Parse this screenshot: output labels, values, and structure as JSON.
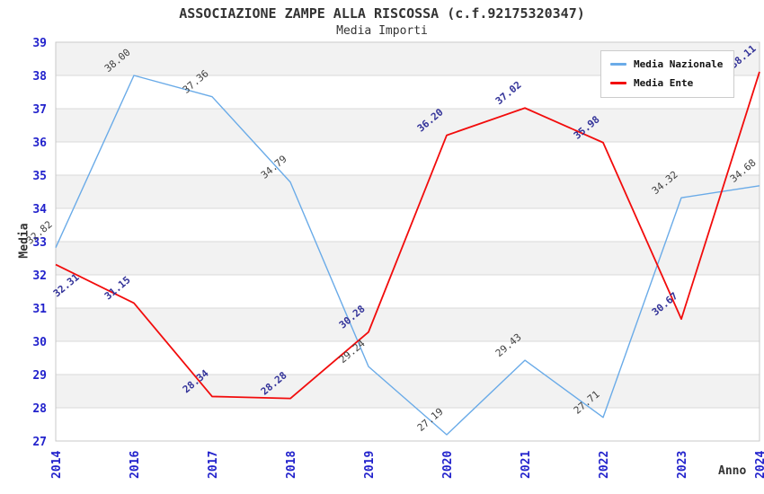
{
  "chart_data": {
    "type": "line",
    "title": "ASSOCIAZIONE ZAMPE ALLA RISCOSSA (c.f.92175320347)",
    "subtitle": "Media Importi",
    "x": [
      "2014",
      "2016",
      "2017",
      "2018",
      "2019",
      "2020",
      "2021",
      "2022",
      "2023",
      "2024"
    ],
    "series": [
      {
        "name": "Media Nazionale",
        "color": "#6aabe8",
        "label_color": "#404040",
        "values": [
          32.82,
          38.0,
          37.36,
          34.79,
          29.24,
          27.19,
          29.43,
          27.71,
          34.32,
          34.68
        ]
      },
      {
        "name": "Media Ente",
        "color": "#f20c0c",
        "label_color": "#333399",
        "values": [
          32.31,
          31.15,
          28.34,
          28.28,
          30.28,
          36.2,
          37.02,
          35.98,
          30.67,
          38.11
        ]
      }
    ],
    "xlabel": "Anno",
    "ylabel": "Media",
    "ylim": [
      27,
      39
    ],
    "ytick_step": 1,
    "grid": "horizontal-bands",
    "legend_position": "top-right",
    "colors": {
      "tick_label": "#2222cc",
      "band": "#f2f2f2",
      "gridline": "#d9d9d9",
      "plot_border": "#c9c9c9",
      "title_text": "#333333"
    }
  }
}
